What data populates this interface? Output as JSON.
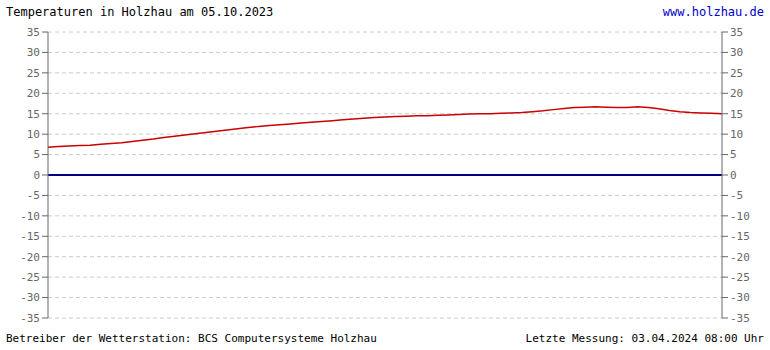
{
  "chart_data": {
    "type": "line",
    "title": "Temperaturen in Holzhau am 05.10.2023",
    "annotations": [
      {
        "text": "www.holzhau.de",
        "color": "#0000cc"
      },
      {
        "text": "Betreiber der Wetterstation: BCS Computersysteme Holzhau"
      },
      {
        "text": "Letzte Messung: 03.04.2024 08:00 Uhr"
      }
    ],
    "values": [
      6.8,
      7.0,
      7.1,
      7.2,
      7.3,
      7.5,
      7.7,
      7.9,
      8.2,
      8.5,
      8.8,
      9.2,
      9.5,
      9.8,
      10.1,
      10.4,
      10.7,
      11.0,
      11.3,
      11.6,
      11.9,
      12.1,
      12.3,
      12.5,
      12.7,
      12.9,
      13.1,
      13.3,
      13.5,
      13.7,
      13.9,
      14.1,
      14.2,
      14.3,
      14.4,
      14.5,
      14.5,
      14.6,
      14.7,
      14.8,
      14.9,
      15.0,
      15.0,
      15.1,
      15.2,
      15.3,
      15.5,
      15.7,
      16.0,
      16.3,
      16.5,
      16.6,
      16.7,
      16.6,
      16.5,
      16.5,
      16.7,
      16.5,
      16.2,
      15.8,
      15.5,
      15.3,
      15.2,
      15.1,
      15.0
    ],
    "color": "#cc0000",
    "reference_lines": [
      {
        "value": 0,
        "color": "#000080"
      }
    ],
    "ylim": [
      -35,
      35
    ],
    "yticks": [
      -35,
      -30,
      -25,
      -20,
      -15,
      -10,
      -5,
      0,
      5,
      10,
      15,
      20,
      25,
      30,
      35
    ],
    "y2lim": [
      -35,
      35
    ],
    "y2ticks": [
      -35,
      -30,
      -25,
      -20,
      -15,
      -10,
      -5,
      0,
      5,
      10,
      15,
      20,
      25,
      30,
      35
    ],
    "grid": true,
    "tick_labels": "y"
  }
}
